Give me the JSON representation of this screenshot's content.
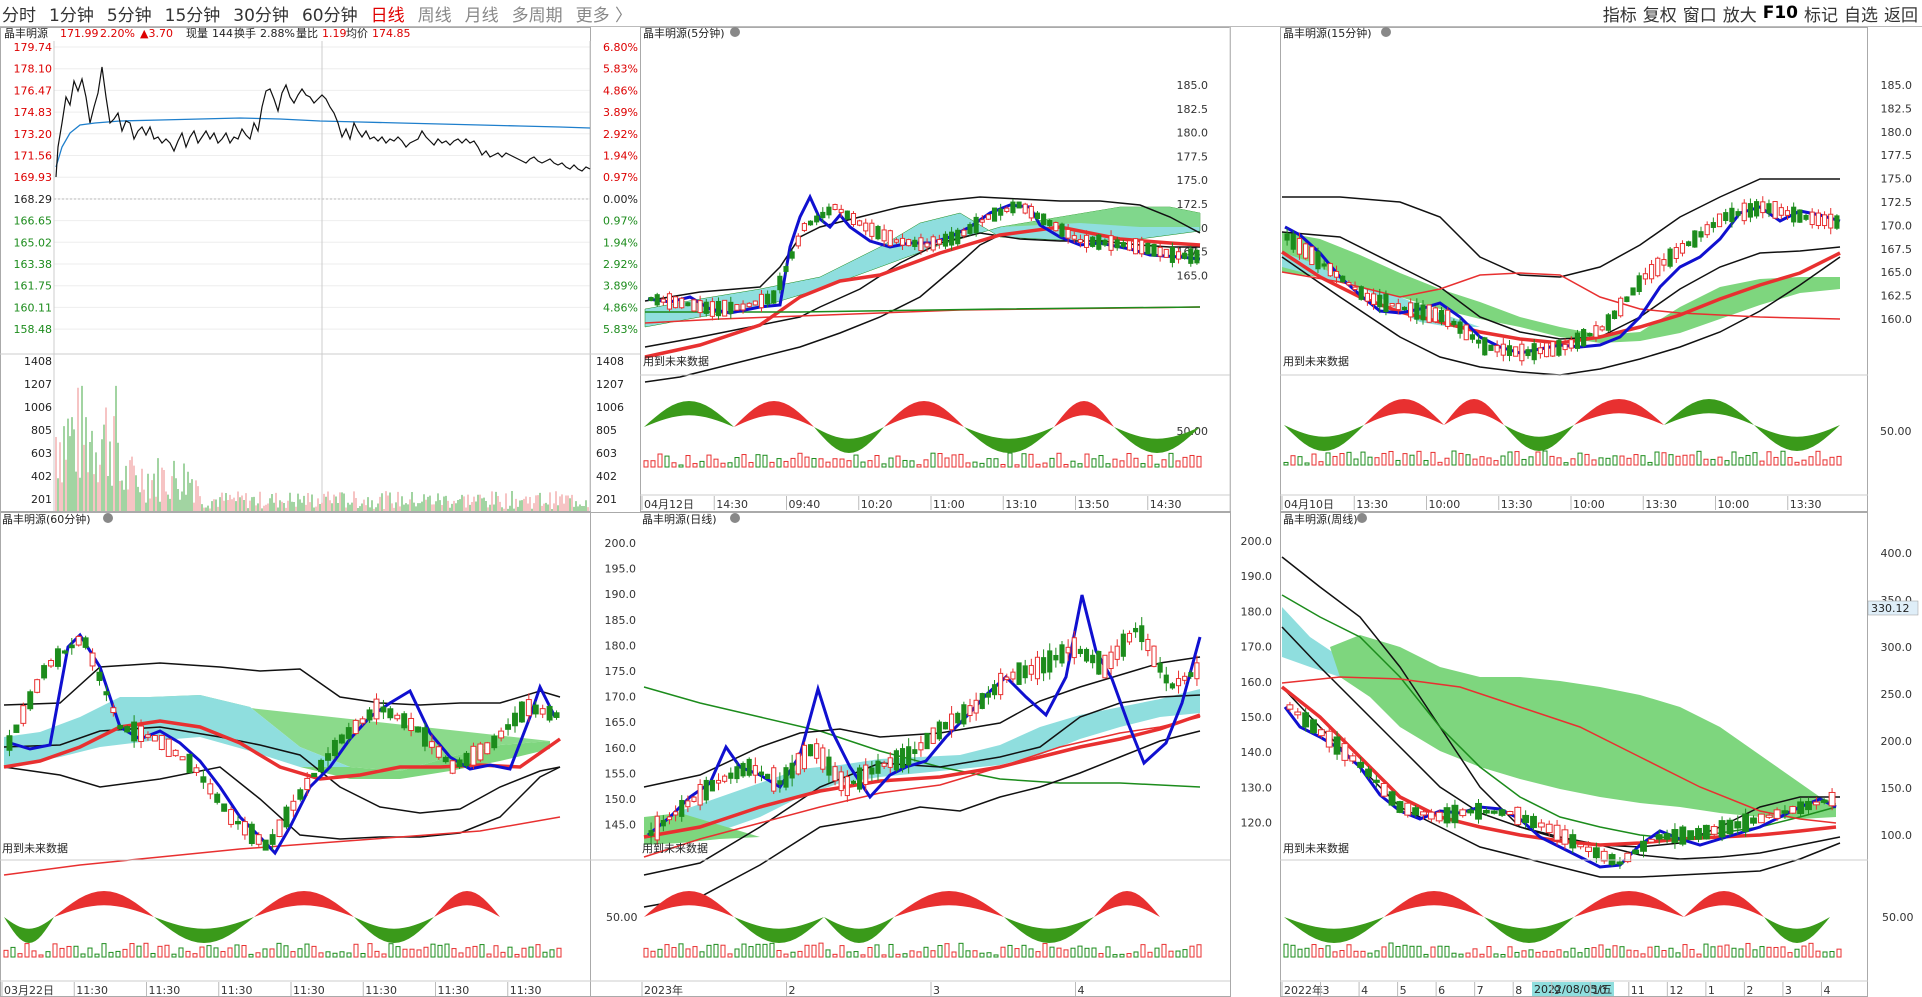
{
  "toolbar": {
    "periods": [
      "分时",
      "1分钟",
      "5分钟",
      "15分钟",
      "30分钟",
      "60分钟",
      "日线",
      "周线",
      "月线",
      "多周期",
      "更多 〉"
    ],
    "active_period": "日线",
    "right_tools": [
      "指标",
      "复权",
      "窗口",
      "放大",
      "F10",
      "标记",
      "自选",
      "返回"
    ]
  },
  "intraday": {
    "stock": "晶丰明源",
    "price": "171.99",
    "pct": "2.20%",
    "change": "▲3.70",
    "vol_label": "现量",
    "vol": "144",
    "turnover_label": "换手",
    "turnover": "2.88%",
    "ratio_label": "量比",
    "ratio": "1.19",
    "avg_label": "均价",
    "avg": "174.85",
    "price_ticks": [
      "179.74",
      "178.10",
      "176.47",
      "174.83",
      "173.20",
      "171.56",
      "169.93",
      "168.29",
      "166.65",
      "165.02",
      "163.38",
      "161.75",
      "160.11",
      "158.48"
    ],
    "pct_ticks": [
      "6.80%",
      "5.83%",
      "4.86%",
      "3.89%",
      "2.92%",
      "1.94%",
      "0.97%",
      "0.00%",
      "0.97%",
      "1.94%",
      "2.92%",
      "3.89%",
      "4.86%",
      "5.83%"
    ],
    "vol_ticks": [
      "1408",
      "1207",
      "1006",
      "805",
      "603",
      "402",
      "201"
    ]
  },
  "panels": {
    "p5": {
      "title": "晶丰明源(5分钟)",
      "y_ticks": [
        "185.0",
        "182.5",
        "180.0",
        "177.5",
        "175.0",
        "172.5",
        "170.0",
        "167.5",
        "165.0"
      ],
      "note": "用到未来数据",
      "ind_tick": "50.00",
      "x_ticks": [
        "04月12日",
        "14:30",
        "09:40",
        "10:20",
        "11:00",
        "13:10",
        "13:50",
        "14:30"
      ]
    },
    "p15": {
      "title": "晶丰明源(15分钟)",
      "y_ticks": [
        "185.0",
        "182.5",
        "180.0",
        "177.5",
        "175.0",
        "172.5",
        "170.0",
        "167.5",
        "165.0",
        "162.5",
        "160.0"
      ],
      "note": "用到未来数据",
      "ind_tick": "50.00",
      "x_ticks": [
        "04月10日",
        "13:30",
        "10:00",
        "13:30",
        "10:00",
        "13:30",
        "10:00",
        "13:30"
      ]
    },
    "p60": {
      "title": "晶丰明源(60分钟)",
      "note": "用到未来数据",
      "x_ticks": [
        "03月22日",
        "11:30",
        "11:30",
        "11:30",
        "11:30",
        "11:30",
        "11:30",
        "11:30"
      ]
    },
    "pday": {
      "title": "晶丰明源(日线)",
      "y_ticks": [
        "200.0",
        "195.0",
        "190.0",
        "185.0",
        "180.0",
        "175.0",
        "170.0",
        "165.0",
        "160.0",
        "155.0",
        "150.0",
        "145.0"
      ],
      "note": "用到未来数据",
      "ind_tick": "50.00",
      "x_ticks": [
        "2023年",
        "2",
        "3",
        "4"
      ]
    },
    "pweek": {
      "title": "晶丰明源(周线)",
      "y_ticks": [
        "200.0",
        "190.0",
        "180.0",
        "170.0",
        "160.0",
        "150.0",
        "140.0",
        "130.0",
        "120.0"
      ],
      "right_ticks": [
        "400.0",
        "350.0",
        "300.0",
        "250.0",
        "200.0",
        "150.0",
        "100.0"
      ],
      "price_tag": "330.12",
      "note": "用到未来数据",
      "ind_tick": "50.00",
      "x_ticks": [
        "2022年",
        "3",
        "4",
        "5",
        "6",
        "7",
        "8",
        "9",
        "10",
        "11",
        "12",
        "1",
        "2",
        "3",
        "4"
      ],
      "date_tag": "2022/08/05/五"
    }
  },
  "colors": {
    "up": "#e83030",
    "down": "#1c8c1c",
    "ma_blue": "#1010d0",
    "cloud_cyan": "#8fdede",
    "cloud_green": "#7ed67e"
  }
}
